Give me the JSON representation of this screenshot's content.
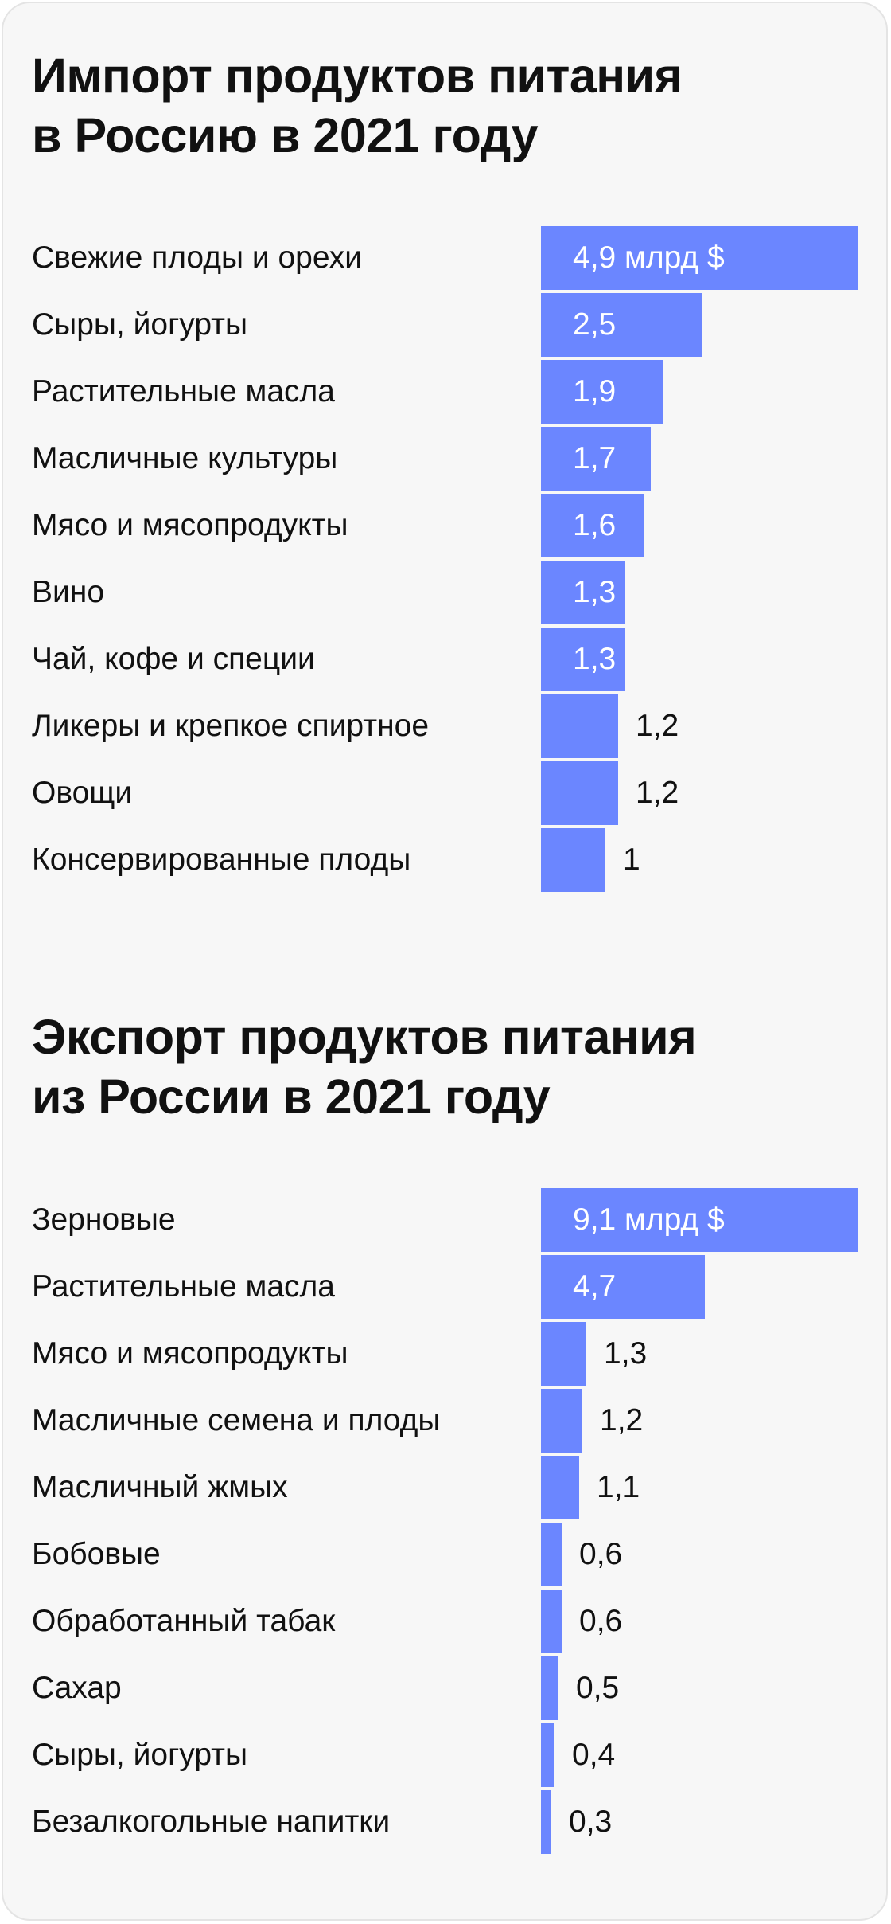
{
  "chart_data": [
    {
      "type": "bar",
      "orientation": "horizontal",
      "title_lines": [
        "Импорт продуктов питания",
        "в Россию в 2021 году"
      ],
      "unit": "млрд $",
      "xlim": [
        0,
        4.9
      ],
      "categories": [
        "Свежие плоды и орехи",
        "Сыры, йогурты",
        "Растительные масла",
        "Масличные культуры",
        "Мясо и мясопродукты",
        "Вино",
        "Чай, кофе и специи",
        "Ликеры и крепкое спиртное",
        "Овощи",
        "Консервированные плоды"
      ],
      "values": [
        4.9,
        2.5,
        1.9,
        1.7,
        1.6,
        1.3,
        1.3,
        1.2,
        1.2,
        1
      ],
      "value_labels": [
        "4,9 млрд $",
        "2,5",
        "1,9",
        "1,7",
        "1,6",
        "1,3",
        "1,3",
        "1,2",
        "1,2",
        "1"
      ],
      "bar_color": "#6b86ff"
    },
    {
      "type": "bar",
      "orientation": "horizontal",
      "title_lines": [
        "Экспорт продуктов питания",
        "из России в 2021 году"
      ],
      "unit": "млрд $",
      "xlim": [
        0,
        9.1
      ],
      "categories": [
        "Зерновые",
        "Растительные масла",
        "Мясо и мясопродукты",
        "Масличные семена и плоды",
        "Масличный жмых",
        "Бобовые",
        "Обработанный табак",
        "Сахар",
        "Сыры, йогурты",
        "Безалкогольные напитки"
      ],
      "values": [
        9.1,
        4.7,
        1.3,
        1.2,
        1.1,
        0.6,
        0.6,
        0.5,
        0.4,
        0.3
      ],
      "value_labels": [
        "9,1 млрд $",
        "4,7",
        "1,3",
        "1,2",
        "1,1",
        "0,6",
        "0,6",
        "0,5",
        "0,4",
        "0,3"
      ],
      "bar_color": "#6b86ff"
    }
  ]
}
